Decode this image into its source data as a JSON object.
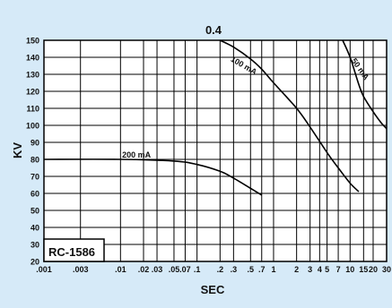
{
  "chart_data": {
    "type": "line",
    "title": "0.4",
    "xlabel": "SEC",
    "ylabel": "KV",
    "x_scale": "log",
    "xlim": [
      0.001,
      30
    ],
    "ylim": [
      20,
      150
    ],
    "grid": true,
    "x_ticks": [
      {
        "value": 0.001,
        "label": ".001"
      },
      {
        "value": 0.003,
        "label": ".003"
      },
      {
        "value": 0.01,
        "label": ".01"
      },
      {
        "value": 0.02,
        "label": ".02"
      },
      {
        "value": 0.03,
        "label": ".03"
      },
      {
        "value": 0.05,
        "label": ".05"
      },
      {
        "value": 0.07,
        "label": ".07"
      },
      {
        "value": 0.1,
        "label": ".1"
      },
      {
        "value": 0.2,
        "label": ".2"
      },
      {
        "value": 0.3,
        "label": ".3"
      },
      {
        "value": 0.5,
        "label": ".5"
      },
      {
        "value": 0.7,
        "label": ".7"
      },
      {
        "value": 1,
        "label": "1"
      },
      {
        "value": 2,
        "label": "2"
      },
      {
        "value": 3,
        "label": "3"
      },
      {
        "value": 4,
        "label": "4"
      },
      {
        "value": 5,
        "label": "5"
      },
      {
        "value": 7,
        "label": "7"
      },
      {
        "value": 10,
        "label": "10"
      },
      {
        "value": 15,
        "label": "15"
      },
      {
        "value": 20,
        "label": "20"
      },
      {
        "value": 30,
        "label": "30"
      }
    ],
    "y_ticks": [
      20,
      30,
      40,
      50,
      60,
      70,
      80,
      90,
      100,
      110,
      120,
      130,
      140,
      150
    ],
    "series": [
      {
        "name": "200 mA",
        "x": [
          0.001,
          0.01,
          0.05,
          0.1,
          0.2,
          0.3,
          0.5,
          0.7
        ],
        "y": [
          80,
          80,
          79,
          77,
          73,
          69,
          63,
          59
        ]
      },
      {
        "name": "100 mA",
        "x": [
          0.2,
          0.3,
          0.5,
          0.7,
          1,
          2,
          3,
          5,
          7,
          10,
          13
        ],
        "y": [
          150,
          146,
          139,
          133,
          125,
          110,
          99,
          84,
          75,
          66,
          61
        ]
      },
      {
        "name": "50 mA",
        "x": [
          8,
          10,
          13,
          15,
          20,
          25,
          30
        ],
        "y": [
          150,
          140,
          124,
          117,
          108,
          102,
          98
        ]
      }
    ],
    "annotation": "RC-1586"
  }
}
